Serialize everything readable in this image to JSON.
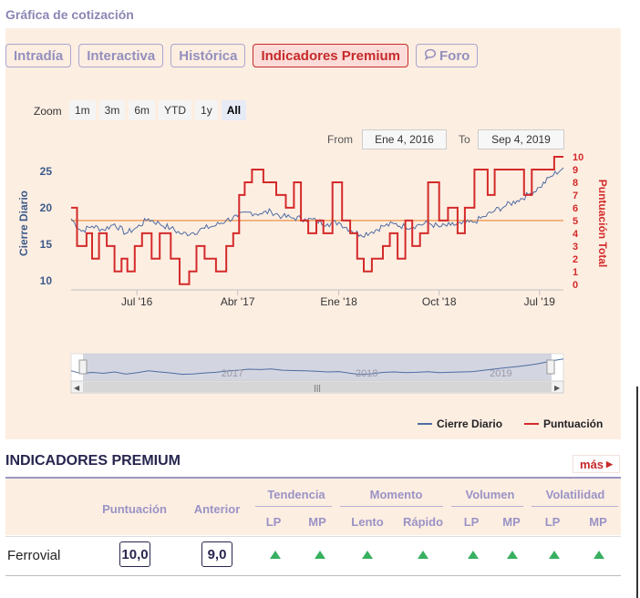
{
  "section": {
    "title": "Gráfica de cotización"
  },
  "tabs": [
    {
      "label": "Intradía"
    },
    {
      "label": "Interactiva"
    },
    {
      "label": "Histórica"
    },
    {
      "label": "Indicadores Premium",
      "active": true
    },
    {
      "label": "Foro",
      "icon": "chat-bubble-icon"
    }
  ],
  "zoom": {
    "label": "Zoom",
    "buttons": [
      "1m",
      "3m",
      "6m",
      "YTD",
      "1y",
      "All"
    ],
    "active": "All"
  },
  "range": {
    "from_label": "From",
    "from_value": "Ene 4, 2016",
    "to_label": "To",
    "to_value": "Sep 4, 2019"
  },
  "chart_data": {
    "type": "line",
    "x_ticks": [
      "Jul '16",
      "Abr '17",
      "Ene '18",
      "Oct '18",
      "Jul '19"
    ],
    "x_range": [
      "2016-01-04",
      "2019-09-04"
    ],
    "y_left": {
      "label": "Cierre Diario",
      "ticks": [
        10,
        15,
        20,
        25
      ],
      "range": [
        9,
        27
      ]
    },
    "y_right": {
      "label": "Puntuación Total",
      "ticks": [
        0,
        1,
        2,
        3,
        4,
        5,
        6,
        7,
        8,
        9,
        10
      ],
      "range": [
        -0.3,
        10
      ]
    },
    "reference_line": {
      "value": 5,
      "axis": "right",
      "color": "#f0a060"
    },
    "series": [
      {
        "name": "Cierre Diario",
        "axis": "left",
        "color": "#4f6da3",
        "points": [
          [
            "2016-01-04",
            18.5
          ],
          [
            "2016-02-01",
            16.8
          ],
          [
            "2016-03-01",
            17.5
          ],
          [
            "2016-04-01",
            17.0
          ],
          [
            "2016-05-01",
            17.8
          ],
          [
            "2016-06-01",
            16.5
          ],
          [
            "2016-07-01",
            17.3
          ],
          [
            "2016-08-01",
            18.5
          ],
          [
            "2016-09-01",
            17.8
          ],
          [
            "2016-10-01",
            17.2
          ],
          [
            "2016-11-01",
            16.4
          ],
          [
            "2016-12-01",
            16.6
          ],
          [
            "2017-01-01",
            17.2
          ],
          [
            "2017-02-01",
            17.6
          ],
          [
            "2017-03-01",
            18.3
          ],
          [
            "2017-04-01",
            18.8
          ],
          [
            "2017-05-01",
            19.4
          ],
          [
            "2017-06-01",
            19.2
          ],
          [
            "2017-07-01",
            19.5
          ],
          [
            "2017-08-01",
            18.8
          ],
          [
            "2017-09-01",
            18.6
          ],
          [
            "2017-10-01",
            18.5
          ],
          [
            "2017-11-01",
            18.2
          ],
          [
            "2017-12-01",
            17.8
          ],
          [
            "2018-01-01",
            18.0
          ],
          [
            "2018-02-01",
            17.0
          ],
          [
            "2018-03-01",
            16.3
          ],
          [
            "2018-04-01",
            16.7
          ],
          [
            "2018-05-01",
            17.5
          ],
          [
            "2018-06-01",
            17.8
          ],
          [
            "2018-07-01",
            17.4
          ],
          [
            "2018-08-01",
            17.6
          ],
          [
            "2018-09-01",
            17.9
          ],
          [
            "2018-10-01",
            17.4
          ],
          [
            "2018-11-01",
            17.6
          ],
          [
            "2018-12-01",
            17.8
          ],
          [
            "2019-01-01",
            18.0
          ],
          [
            "2019-02-01",
            18.8
          ],
          [
            "2019-03-01",
            19.6
          ],
          [
            "2019-04-01",
            20.3
          ],
          [
            "2019-05-01",
            21.0
          ],
          [
            "2019-06-01",
            21.8
          ],
          [
            "2019-07-01",
            22.8
          ],
          [
            "2019-08-01",
            24.3
          ],
          [
            "2019-09-04",
            25.5
          ]
        ]
      },
      {
        "name": "Puntuación",
        "axis": "right",
        "color": "#d42a2a",
        "step": true,
        "points": [
          [
            "2016-01-04",
            6
          ],
          [
            "2016-01-20",
            3
          ],
          [
            "2016-02-15",
            4
          ],
          [
            "2016-03-01",
            2
          ],
          [
            "2016-03-20",
            4
          ],
          [
            "2016-04-10",
            3
          ],
          [
            "2016-05-01",
            1
          ],
          [
            "2016-05-20",
            2
          ],
          [
            "2016-06-05",
            1
          ],
          [
            "2016-06-25",
            3
          ],
          [
            "2016-07-15",
            4
          ],
          [
            "2016-08-10",
            2
          ],
          [
            "2016-09-01",
            4
          ],
          [
            "2016-10-01",
            2
          ],
          [
            "2016-10-25",
            0
          ],
          [
            "2016-11-20",
            1
          ],
          [
            "2016-12-10",
            3
          ],
          [
            "2017-01-01",
            2
          ],
          [
            "2017-02-01",
            1
          ],
          [
            "2017-03-01",
            3
          ],
          [
            "2017-03-20",
            4
          ],
          [
            "2017-04-05",
            7
          ],
          [
            "2017-04-20",
            8
          ],
          [
            "2017-05-10",
            9
          ],
          [
            "2017-06-10",
            8
          ],
          [
            "2017-07-15",
            7
          ],
          [
            "2017-08-10",
            6
          ],
          [
            "2017-09-01",
            8
          ],
          [
            "2017-09-20",
            5
          ],
          [
            "2017-10-10",
            4
          ],
          [
            "2017-11-01",
            5
          ],
          [
            "2017-11-20",
            4
          ],
          [
            "2017-12-15",
            8
          ],
          [
            "2018-01-10",
            5
          ],
          [
            "2018-02-01",
            4
          ],
          [
            "2018-02-20",
            2
          ],
          [
            "2018-03-10",
            1
          ],
          [
            "2018-04-01",
            2
          ],
          [
            "2018-05-01",
            3
          ],
          [
            "2018-05-20",
            4
          ],
          [
            "2018-06-10",
            2
          ],
          [
            "2018-07-01",
            5
          ],
          [
            "2018-07-20",
            3
          ],
          [
            "2018-08-10",
            4
          ],
          [
            "2018-09-01",
            8
          ],
          [
            "2018-10-01",
            5
          ],
          [
            "2018-10-25",
            6
          ],
          [
            "2018-11-20",
            4
          ],
          [
            "2018-12-10",
            6
          ],
          [
            "2019-01-05",
            9
          ],
          [
            "2019-02-10",
            7
          ],
          [
            "2019-03-01",
            9
          ],
          [
            "2019-05-20",
            7
          ],
          [
            "2019-06-10",
            9
          ],
          [
            "2019-08-10",
            10
          ],
          [
            "2019-09-04",
            10
          ]
        ]
      }
    ],
    "navigator": {
      "ticks": [
        "2017",
        "2018",
        "2019"
      ]
    },
    "legend": {
      "position": "bottom-right",
      "entries": [
        "Cierre Diario",
        "Puntuación"
      ]
    }
  },
  "indicators": {
    "title": "INDICADORES PREMIUM",
    "more_label": "más",
    "columns": {
      "score": "Puntuación",
      "previous": "Anterior",
      "groups": [
        {
          "name": "Tendencia",
          "subs": [
            "LP",
            "MP"
          ]
        },
        {
          "name": "Momento",
          "subs": [
            "Lento",
            "Rápido"
          ]
        },
        {
          "name": "Volumen",
          "subs": [
            "LP",
            "MP"
          ]
        },
        {
          "name": "Volatilidad",
          "subs": [
            "LP",
            "MP"
          ]
        }
      ]
    },
    "rows": [
      {
        "name": "Ferrovial",
        "score": "10,0",
        "previous": "9,0",
        "signals": [
          "up",
          "up",
          "up",
          "up",
          "up",
          "up",
          "up",
          "up"
        ]
      }
    ],
    "up_color": "#38b060"
  },
  "colors": {
    "accent": "#c62a2a",
    "panel": "#fdeee2",
    "purple": "#9a93c5"
  }
}
